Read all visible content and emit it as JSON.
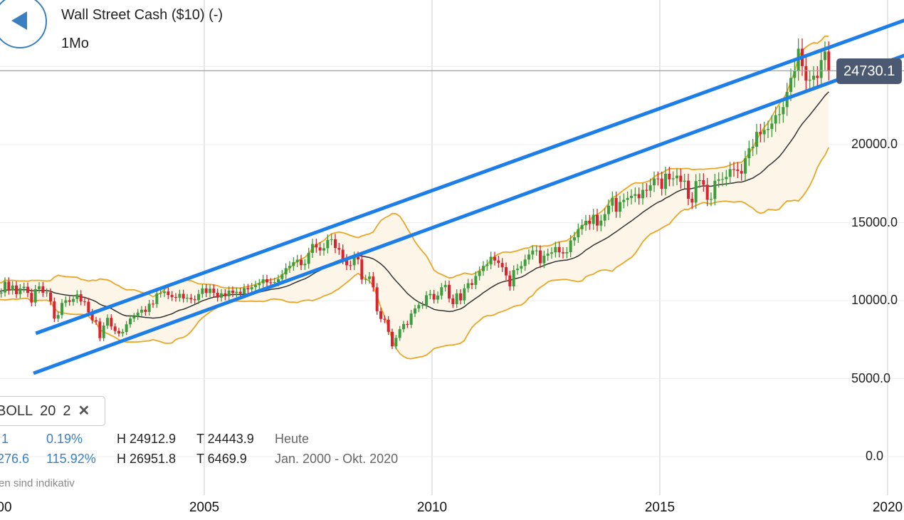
{
  "header": {
    "title": "Wall Street Cash ($10) (-)",
    "period": "1Mo",
    "back_icon": "triangle-left-icon"
  },
  "price_tag": "24730.1",
  "indicator": {
    "name": "BOLL",
    "period": "20",
    "stddev": "2",
    "close_icon": "x-icon"
  },
  "stats": {
    "today": {
      "change": "1",
      "change_pct": "0.19%",
      "high": "H 24912.9",
      "low": "T 24443.9",
      "label": "Heute"
    },
    "range": {
      "change": "276.6",
      "change_pct": "115.92%",
      "high": "H 26951.8",
      "low": "T 6469.9",
      "label": "Jan. 2000 - Okt. 2020"
    },
    "note": "en sind indikativ"
  },
  "colors": {
    "up": "#3c9e3c",
    "down": "#d9232e",
    "band": "#e8a72a",
    "band_fill": "#fdf6e8",
    "sma": "#333333",
    "trend": "#1e7ee8"
  },
  "chart_data": {
    "type": "candlestick",
    "interval": "monthly",
    "start": "2000-01",
    "xlim": [
      2000,
      2020.4
    ],
    "ylim": [
      0,
      26000
    ],
    "x_ticks": [
      "00",
      "2005",
      "2010",
      "2015",
      "2020"
    ],
    "y_ticks": [
      "20000.0",
      "15000.0",
      "10000.0",
      "5000.0",
      "0.0"
    ],
    "grid": true,
    "indicator": "Bollinger Bands (20, 2) with middle SMA",
    "closes": [
      10940,
      10128,
      10922,
      10734,
      10522,
      10448,
      10522,
      11215,
      10651,
      10971,
      10415,
      10787,
      10887,
      10495,
      9879,
      10735,
      10912,
      10502,
      10523,
      9950,
      8848,
      9075,
      9852,
      10022,
      9920,
      10106,
      10404,
      9946,
      9925,
      9243,
      8737,
      8664,
      7592,
      8397,
      8896,
      8342,
      8054,
      7891,
      7992,
      8480,
      8850,
      8985,
      9234,
      9416,
      9275,
      9801,
      9782,
      10454,
      10488,
      10584,
      10358,
      10226,
      10188,
      10435,
      10140,
      10174,
      10080,
      10027,
      10428,
      10783,
      10490,
      10766,
      10504,
      10193,
      10467,
      10275,
      10641,
      10482,
      10569,
      10440,
      10806,
      10718,
      10865,
      10993,
      11109,
      11367,
      11168,
      11150,
      11186,
      11381,
      11679,
      12081,
      12222,
      12463,
      12622,
      12269,
      12354,
      13063,
      13628,
      13409,
      13212,
      13358,
      13896,
      13930,
      13372,
      13265,
      12650,
      12266,
      12263,
      12820,
      12638,
      11350,
      11378,
      11544,
      10851,
      9325,
      8829,
      8776,
      8001,
      7063,
      7609,
      8168,
      8500,
      8447,
      9172,
      9496,
      9712,
      9713,
      10345,
      10428,
      10067,
      10325,
      10857,
      11009,
      10137,
      9774,
      10466,
      10015,
      10788,
      11118,
      11006,
      11578,
      11892,
      12226,
      12320,
      12811,
      12570,
      12414,
      12143,
      11614,
      10913,
      11955,
      12046,
      12218,
      12633,
      12952,
      13212,
      13214,
      12393,
      12880,
      13009,
      13091,
      13437,
      13096,
      13026,
      13104,
      13861,
      14054,
      14579,
      14840,
      15116,
      14910,
      15500,
      14810,
      15130,
      15546,
      16086,
      16577,
      15699,
      16322,
      16458,
      16581,
      16717,
      16827,
      16563,
      17098,
      17043,
      17391,
      17828,
      17823,
      17165,
      18133,
      17776,
      17841,
      18011,
      17620,
      17690,
      16528,
      16285,
      17664,
      17720,
      17425,
      16466,
      16517,
      17685,
      17774,
      17787,
      17930,
      18432,
      18401,
      18308,
      18142,
      19124,
      19763,
      19864,
      20812,
      20663,
      20941,
      21009,
      21350,
      21891,
      21948,
      22405,
      23377,
      24272,
      24719,
      26149,
      25029,
      24103,
      24163,
      24416,
      24271,
      25415,
      25965,
      24730
    ],
    "trend_lines": [
      {
        "from": [
          2001.3,
          7900
        ],
        "to": [
          2020.4,
          28000
        ]
      },
      {
        "from": [
          2001.25,
          5340
        ],
        "to": [
          2020.4,
          25750
        ]
      }
    ],
    "last_price": 24730.1
  }
}
